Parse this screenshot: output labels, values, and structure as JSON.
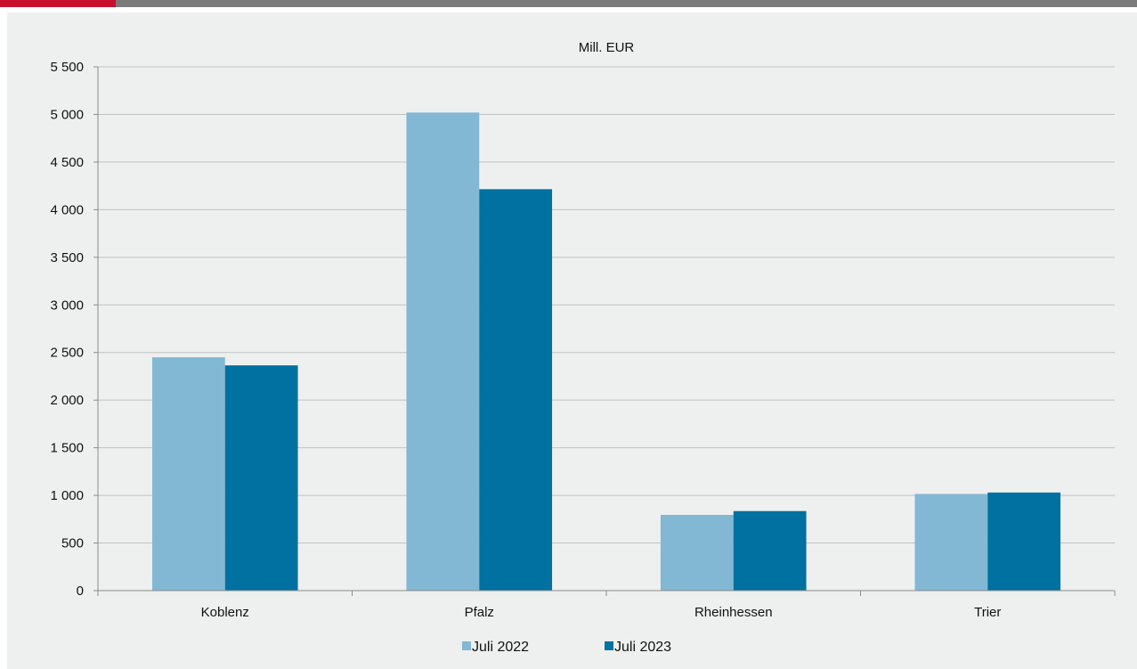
{
  "chart_data": {
    "type": "bar",
    "unit_label": "Mill. EUR",
    "categories": [
      "Koblenz",
      "Pfalz",
      "Rheinhessen",
      "Trier"
    ],
    "series": [
      {
        "name": "Juli 2022",
        "color": "#82b8d4",
        "values": [
          2450,
          5020,
          795,
          1015
        ]
      },
      {
        "name": "Juli 2023",
        "color": "#0071a1",
        "values": [
          2365,
          4215,
          835,
          1030
        ]
      }
    ],
    "ylim": [
      0,
      5500
    ],
    "yticks": [
      0,
      500,
      1000,
      1500,
      2000,
      2500,
      3000,
      3500,
      4000,
      4500,
      5000,
      5500
    ],
    "ytick_labels": [
      "0",
      "500",
      "1 000",
      "1 500",
      "2 000",
      "2 500",
      "3 000",
      "3 500",
      "4 000",
      "4 500",
      "5 000",
      "5 500"
    ],
    "grid": true,
    "legend_position": "bottom"
  }
}
